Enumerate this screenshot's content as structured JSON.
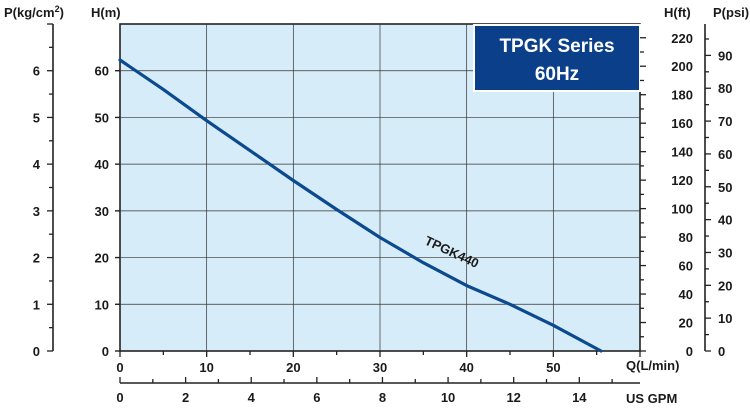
{
  "chart_data": {
    "type": "line",
    "badge": {
      "line1": "TPGK Series",
      "line2": "60Hz",
      "color": "#0b3f8a"
    },
    "plot_background": "#d6ecf8",
    "grid": true,
    "x_axis": {
      "label": "Q(L/min)",
      "range": [
        0,
        60
      ],
      "ticks": [
        0,
        10,
        20,
        30,
        40,
        50
      ]
    },
    "x2_axis": {
      "label": "US GPM",
      "range": [
        0,
        15.85
      ],
      "ticks": [
        0,
        2,
        4,
        6,
        8,
        10,
        12,
        14
      ]
    },
    "y_axis": {
      "label": "H(m)",
      "range": [
        0,
        70
      ],
      "ticks": [
        0,
        10,
        20,
        30,
        40,
        50,
        60
      ]
    },
    "y_left_outer": {
      "label_base": "P(kg/cm",
      "label_sup": "2",
      "label_end": ")",
      "range": [
        0,
        7
      ],
      "ticks": [
        0,
        1,
        2,
        3,
        4,
        5,
        6
      ]
    },
    "y_right_ft": {
      "label": "H(ft)",
      "range": [
        0,
        229.66
      ],
      "ticks": [
        0,
        20,
        40,
        60,
        80,
        100,
        120,
        140,
        160,
        180,
        200,
        220
      ]
    },
    "y_right_psi": {
      "label": "P(psi)",
      "range": [
        0,
        99.56
      ],
      "ticks": [
        0,
        10,
        20,
        30,
        40,
        50,
        60,
        70,
        80,
        90
      ]
    },
    "series": [
      {
        "name": "TPGK440",
        "color": "#0b4a8f",
        "x": [
          0,
          5,
          10,
          15,
          20,
          25,
          30,
          35,
          40,
          45,
          50,
          55.5
        ],
        "y": [
          62.3,
          56,
          49.3,
          42.9,
          36.5,
          30.3,
          24.3,
          18.9,
          14,
          10,
          5.5,
          0
        ]
      }
    ]
  }
}
